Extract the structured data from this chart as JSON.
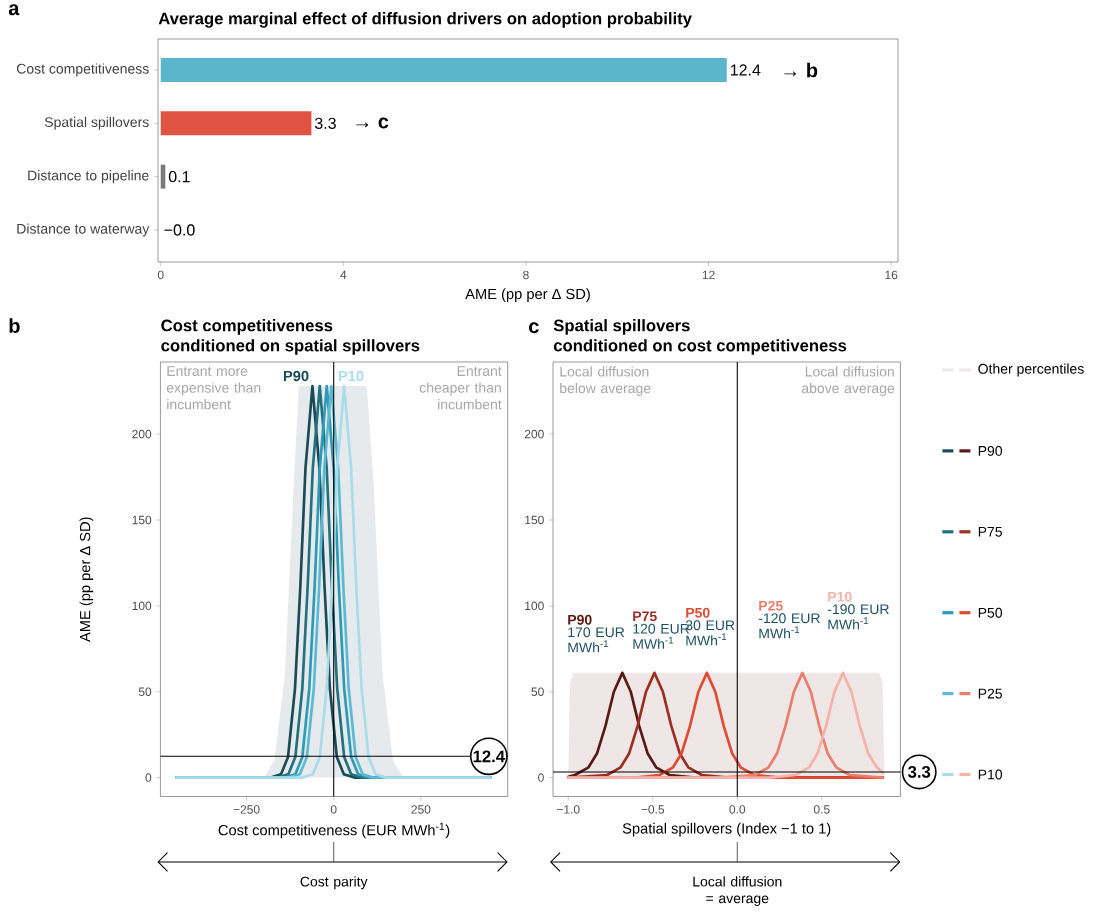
{
  "chart_data": [
    {
      "type": "bar",
      "orientation": "horizontal",
      "title": "Average marginal effect of diffusion drivers on adoption probability",
      "xlabel": "AME (pp per Δ SD)",
      "categories": [
        "Cost competitiveness",
        "Spatial spillovers",
        "Distance to pipeline",
        "Distance to waterway"
      ],
      "values": [
        12.4,
        3.3,
        0.1,
        0.0
      ],
      "colors": [
        "#5bb6cc",
        "#e05241",
        "#7a7a7a",
        "#333333"
      ],
      "value_labels": [
        "12.4",
        "3.3",
        "0.1",
        "−0.0"
      ],
      "xlim": [
        -0.06,
        16.15
      ],
      "xticks": [
        0,
        4,
        8,
        12,
        16
      ],
      "annotations": [
        "a",
        "→ b",
        "→ c"
      ]
    },
    {
      "type": "line",
      "title": "Cost competitiveness",
      "subtitle": "conditioned on spatial spillovers",
      "xlabel": "Cost competitiveness (EUR MWh$^{-1}$)",
      "ylabel": "AME (pp per Δ SD)",
      "xlim": [
        -497,
        499
      ],
      "xticks": [
        {
          "value": -250,
          "label": "−250"
        },
        0,
        250
      ],
      "ylim": [
        -11,
        242
      ],
      "yticks": [
        0,
        50,
        100,
        150,
        200
      ],
      "series": [
        {
          "type": "area",
          "color": "#e7eaec",
          "x": [
            -200,
            -170,
            -140,
            -115,
            -100,
            95,
            115,
            140,
            170,
            200
          ],
          "values": [
            0,
            10,
            60,
            170,
            228,
            228,
            170,
            60,
            10,
            0
          ]
        },
        {
          "color": "#1b4b57",
          "x": [
            -450,
            -181,
            -151,
            -131,
            -111,
            -96,
            -81,
            -61,
            -41,
            -26,
            -11,
            9,
            29,
            59,
            450
          ],
          "values": [
            0,
            0,
            2,
            12,
            52,
            110,
            180,
            228,
            180,
            110,
            52,
            12,
            2,
            0,
            0
          ]
        },
        {
          "color": "#23707f",
          "x": [
            -450,
            -160,
            -130,
            -110,
            -90,
            -75,
            -60,
            -40,
            -20,
            -5,
            10,
            30,
            50,
            80,
            450
          ],
          "values": [
            0,
            0,
            2,
            12,
            52,
            110,
            180,
            228,
            180,
            110,
            52,
            12,
            2,
            0,
            0
          ]
        },
        {
          "color": "#2f9ab5",
          "x": [
            -450,
            -140,
            -110,
            -90,
            -70,
            -55,
            -40,
            -20,
            0,
            15,
            30,
            50,
            70,
            100,
            450
          ],
          "values": [
            0,
            0,
            2,
            12,
            52,
            110,
            180,
            228,
            180,
            110,
            52,
            12,
            2,
            0,
            0
          ]
        },
        {
          "color": "#5bbad3",
          "x": [
            -450,
            -127,
            -97,
            -77,
            -57,
            -42,
            -27,
            -7,
            13,
            28,
            43,
            63,
            83,
            113,
            450
          ],
          "values": [
            0,
            0,
            2,
            12,
            52,
            110,
            180,
            228,
            180,
            110,
            52,
            12,
            2,
            0,
            0
          ]
        },
        {
          "color": "#a9dceb",
          "x": [
            -450,
            -90,
            -60,
            -40,
            -20,
            -5,
            10,
            30,
            50,
            65,
            80,
            100,
            120,
            150,
            450
          ],
          "values": [
            0,
            0,
            2,
            12,
            52,
            110,
            180,
            228,
            180,
            110,
            52,
            12,
            2,
            0,
            0
          ]
        }
      ],
      "ref_lines": [
        {
          "axis": "y",
          "value": 12.4,
          "label": "12.4"
        },
        {
          "axis": "x",
          "value": 0
        }
      ],
      "annotations": [
        "b",
        "Entrant more expensive than incumbent",
        "Entrant cheaper than incumbent",
        "Cost parity",
        "P90",
        "P10"
      ]
    },
    {
      "type": "line",
      "title": "Spatial spillovers",
      "subtitle": "conditioned on cost competitiveness",
      "xlabel": "Spatial spillovers (Index −1 to 1)",
      "xlim": [
        -1.09,
        0.965
      ],
      "xticks": [
        {
          "value": -1,
          "label": "−1.0"
        },
        {
          "value": -0.5,
          "label": "−0.5"
        },
        {
          "value": 0,
          "label": "0.0"
        },
        {
          "value": 0.5,
          "label": "0.5"
        }
      ],
      "ylim": [
        -11,
        242
      ],
      "yticks": [
        0,
        50,
        100,
        150,
        200
      ],
      "legend": "right",
      "series": [
        {
          "type": "area",
          "name": "Other percentiles",
          "color": "#efe7e6",
          "x": [
            -1.0,
            -0.99,
            -0.97,
            0.84,
            0.86,
            0.87
          ],
          "values": [
            0,
            55,
            61,
            61,
            55,
            0
          ]
        },
        {
          "name": "P90",
          "color": "#5a1a14",
          "x": [
            -1.0,
            -0.96,
            -0.88,
            -0.83,
            -0.78,
            -0.73,
            -0.68,
            -0.63,
            -0.58,
            -0.53,
            -0.48,
            -0.4,
            -0.25,
            0.86
          ],
          "values": [
            0.5,
            1.5,
            6,
            14,
            30,
            50,
            61,
            50,
            30,
            14,
            6,
            1.5,
            0,
            0
          ]
        },
        {
          "name": "P75",
          "color": "#9b2e22",
          "x": [
            -1.0,
            -0.77,
            -0.69,
            -0.64,
            -0.59,
            -0.54,
            -0.49,
            -0.44,
            -0.39,
            -0.34,
            -0.29,
            -0.21,
            -0.05,
            0.86
          ],
          "values": [
            0,
            1.5,
            6,
            14,
            30,
            50,
            61,
            50,
            30,
            14,
            6,
            1.5,
            0,
            0
          ]
        },
        {
          "name": "P50",
          "color": "#e04a33",
          "x": [
            -1.0,
            -0.6,
            -0.46,
            -0.38,
            -0.33,
            -0.28,
            -0.23,
            -0.18,
            -0.13,
            -0.08,
            -0.03,
            0.02,
            0.1,
            0.26,
            0.86
          ],
          "values": [
            0,
            0,
            1.5,
            6,
            14,
            30,
            50,
            61,
            50,
            30,
            14,
            6,
            1.5,
            0,
            0
          ]
        },
        {
          "name": "P25",
          "color": "#eb7d6c",
          "x": [
            -1.0,
            -0.1,
            0.105,
            0.185,
            0.235,
            0.285,
            0.335,
            0.385,
            0.435,
            0.485,
            0.535,
            0.585,
            0.665,
            0.86
          ],
          "values": [
            0,
            0,
            1.5,
            6,
            14,
            30,
            50,
            61,
            50,
            30,
            14,
            6,
            1.5,
            0
          ]
        },
        {
          "name": "P10",
          "color": "#f4b2a8",
          "x": [
            -1.0,
            0.2,
            0.345,
            0.425,
            0.475,
            0.525,
            0.575,
            0.625,
            0.675,
            0.725,
            0.775,
            0.825,
            0.86
          ],
          "values": [
            0,
            0,
            1.5,
            6,
            14,
            30,
            50,
            61,
            50,
            30,
            14,
            6,
            3
          ]
        }
      ],
      "ref_lines": [
        {
          "axis": "y",
          "value": 3.3,
          "label": "3.3"
        },
        {
          "axis": "x",
          "value": 0
        }
      ],
      "annotations": [
        "c",
        "Local diffusion below average",
        "Local diffusion above average",
        "Local diffusion = average",
        "170 EUR MWh$^{-1}$",
        "120 EUR MWh$^{-1}$",
        "30 EUR MWh$^{-1}$",
        "-120 EUR MWh$^{-1}$",
        "-190 EUR MWh$^{-1}$"
      ]
    }
  ]
}
